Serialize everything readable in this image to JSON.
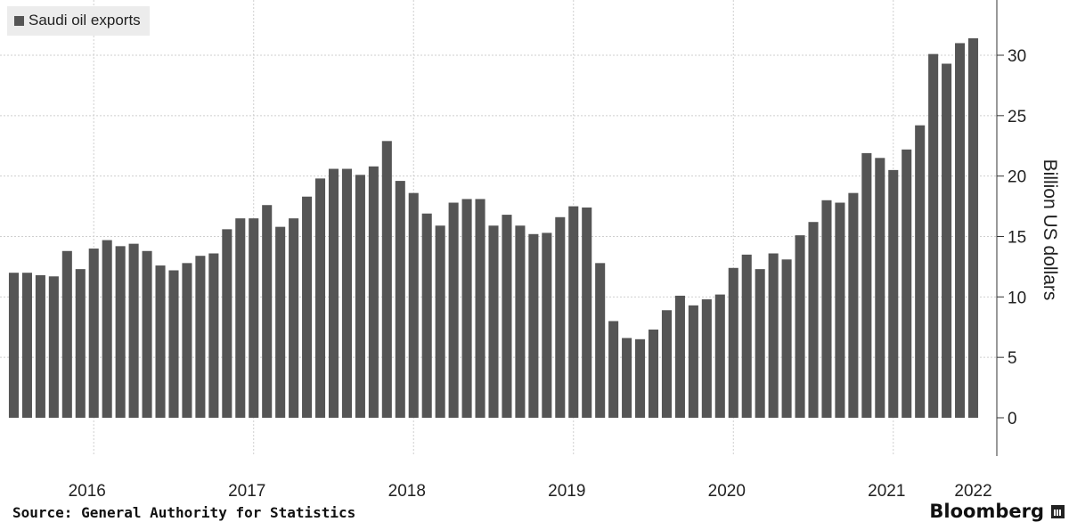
{
  "chart_data": {
    "type": "bar",
    "legend": "Saudi oil exports",
    "legend_position": "top-left",
    "ylabel": "Billion US dollars",
    "ylim": [
      0,
      32
    ],
    "yticks": [
      0,
      5,
      10,
      15,
      20,
      25,
      30
    ],
    "x_year_labels": [
      "2016",
      "2017",
      "2018",
      "2019",
      "2020",
      "2021",
      "2022"
    ],
    "start": "2016-01",
    "values": [
      12.0,
      12.0,
      11.8,
      11.7,
      13.8,
      12.3,
      14.0,
      14.7,
      14.2,
      14.4,
      13.8,
      12.6,
      12.2,
      12.8,
      13.4,
      13.6,
      15.6,
      16.5,
      16.5,
      17.6,
      15.8,
      16.5,
      18.3,
      19.8,
      20.6,
      20.6,
      20.1,
      20.8,
      22.9,
      19.6,
      18.6,
      16.9,
      15.9,
      17.8,
      18.1,
      18.1,
      15.9,
      16.8,
      15.9,
      15.2,
      15.3,
      16.6,
      17.5,
      17.4,
      12.8,
      8.0,
      6.6,
      6.5,
      7.3,
      8.9,
      10.1,
      9.3,
      9.8,
      10.2,
      12.4,
      13.5,
      12.3,
      13.6,
      13.1,
      15.1,
      16.2,
      18.0,
      17.8,
      18.6,
      21.9,
      21.5,
      20.5,
      22.2,
      24.2,
      30.1,
      29.3,
      31.0,
      31.4
    ],
    "grid": true,
    "bar_color": "#555555"
  },
  "footer": {
    "source": "Source: General Authority for Statistics",
    "brand": "Bloomberg"
  }
}
